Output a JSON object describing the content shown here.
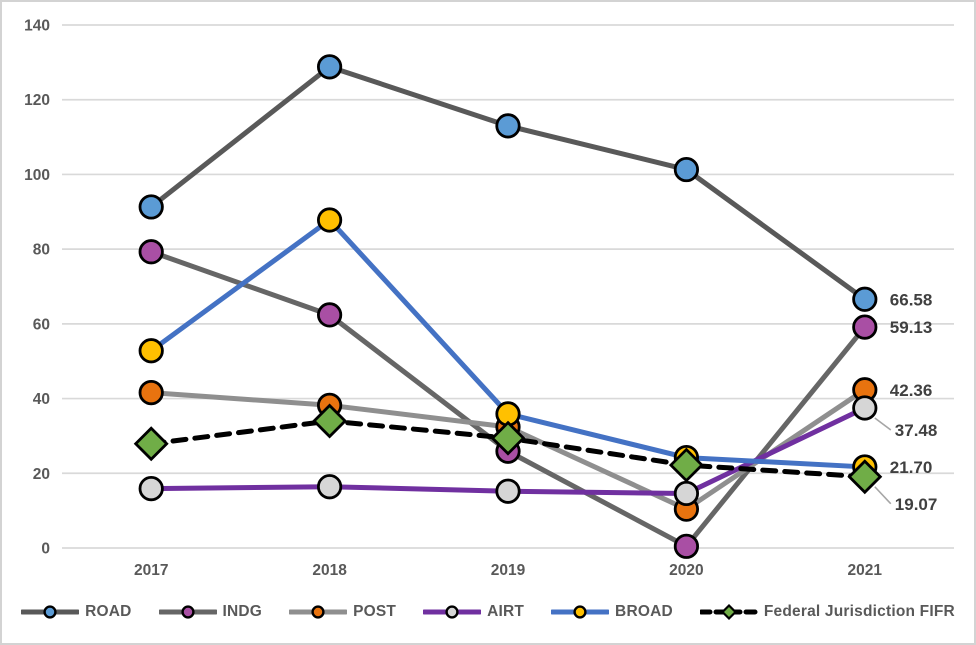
{
  "chart_data": {
    "type": "line",
    "title": "",
    "xlabel": "",
    "ylabel": "",
    "categories": [
      "2017",
      "2018",
      "2019",
      "2020",
      "2021"
    ],
    "ylim": [
      0,
      140
    ],
    "y_ticks": [
      "140",
      "120",
      "100",
      "80",
      "60",
      "40",
      "20",
      "0"
    ],
    "grid": true,
    "legend_position": "bottom",
    "series": [
      {
        "id": "road",
        "name": "ROAD",
        "values": [
          91.3,
          128.8,
          113.0,
          101.3,
          66.58
        ],
        "line_color": "#595959",
        "marker": "circle",
        "marker_color": "#5B9BD5",
        "dash": null,
        "end_label": {
          "text": "66.58",
          "dx": 25,
          "dy": 0,
          "leader": false
        }
      },
      {
        "id": "indg",
        "name": "INDG",
        "values": [
          79.3,
          62.4,
          25.9,
          0.45,
          59.13
        ],
        "line_color": "#666666",
        "marker": "circle",
        "marker_color": "#A94FA4",
        "dash": null,
        "end_label": {
          "text": "59.13",
          "dx": 25,
          "dy": 0,
          "leader": false
        }
      },
      {
        "id": "post",
        "name": "POST",
        "values": [
          41.6,
          38.2,
          32.4,
          10.4,
          42.36
        ],
        "line_color": "#8F8F8F",
        "marker": "circle",
        "marker_color": "#E8730F",
        "dash": null,
        "end_label": {
          "text": "42.36",
          "dx": 25,
          "dy": 0,
          "leader": false
        }
      },
      {
        "id": "airt",
        "name": "AIRT",
        "values": [
          15.9,
          16.4,
          15.2,
          14.6,
          37.48
        ],
        "line_color": "#7030A0",
        "marker": "circle",
        "marker_color": "#D6D6D6",
        "dash": null,
        "end_label": {
          "text": "37.48",
          "dx": 30,
          "dy": 22,
          "leader": true
        }
      },
      {
        "id": "broad",
        "name": "BROAD",
        "values": [
          52.8,
          87.8,
          35.9,
          24.2,
          21.7
        ],
        "line_color": "#4472C4",
        "marker": "circle",
        "marker_color": "#FFC000",
        "dash": null,
        "end_label": {
          "text": "21.70",
          "dx": 25,
          "dy": 0,
          "leader": false
        }
      },
      {
        "id": "fifr",
        "name": "Federal Jurisdiction FIFR",
        "values": [
          27.9,
          34.0,
          29.4,
          22.2,
          19.07
        ],
        "line_color": "#000000",
        "marker": "diamond",
        "marker_color": "#70AD47",
        "dash": "13 9",
        "end_label": {
          "text": "19.07",
          "dx": 30,
          "dy": 27,
          "leader": true
        }
      }
    ],
    "colors": {
      "grid": "#D9D9D9",
      "axis_label": "#595959",
      "data_label": "#404040",
      "leader_line": "#A6A6A6",
      "background": "#FFFFFF",
      "border": "#D3D3D3"
    }
  }
}
